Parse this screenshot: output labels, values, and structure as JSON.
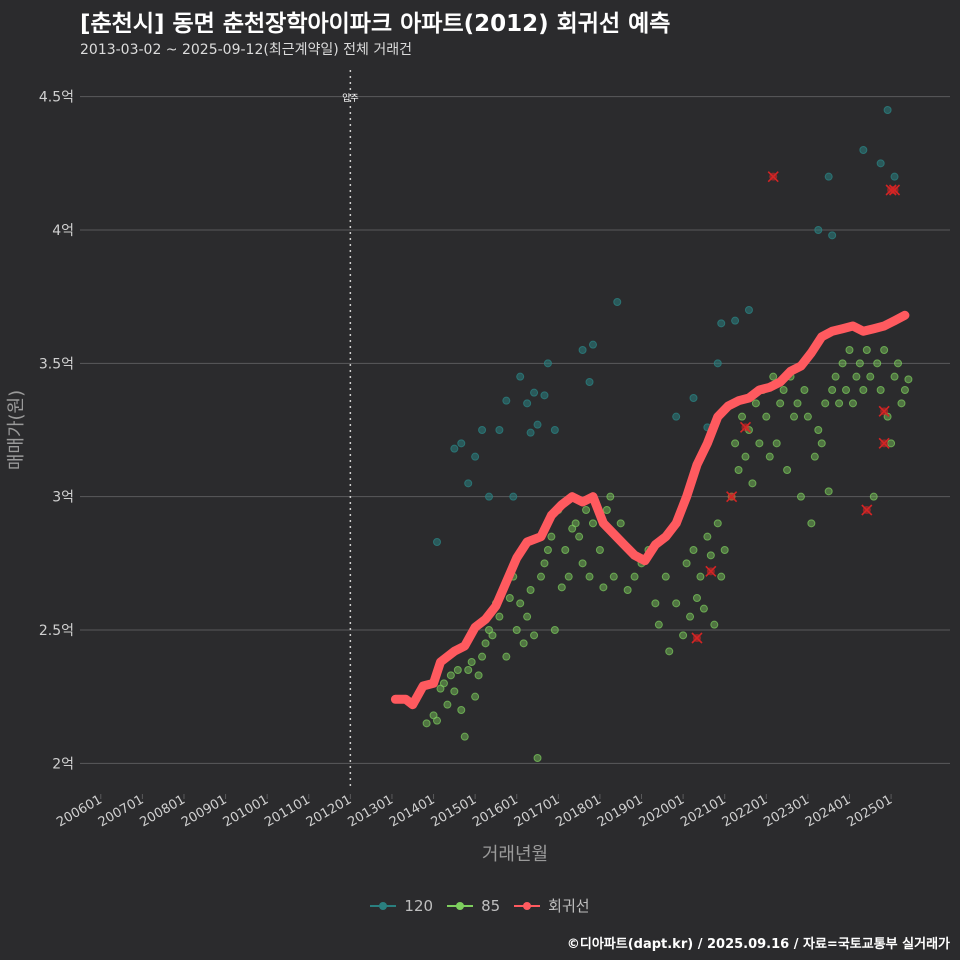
{
  "title": "[춘천시] 동면 춘천장학아이파크 아파트(2012) 회귀선 예측",
  "subtitle": "2013-03-02 ~ 2025-09-12(최근계약일) 전체 거래건",
  "caption": "©디아파트(dapt.kr) / 2025.09.16 / 자료=국토교통부 실거래가",
  "colors": {
    "background": "#2b2b2d",
    "grid": "#5a5a5c",
    "series_120": "#2a7f7f",
    "series_85": "#7ecf5e",
    "regression": "#ff5a5f",
    "outlier": "#d42424",
    "text": "#d0d0d0"
  },
  "chart_data": {
    "type": "scatter",
    "title": "[춘천시] 동면 춘천장학아이파크 아파트(2012) 회귀선 예측",
    "xlabel": "거래년월",
    "ylabel": "매매가(원)",
    "x_ticks": [
      "200601",
      "200701",
      "200801",
      "200901",
      "201001",
      "201101",
      "201201",
      "201301",
      "201401",
      "201501",
      "201601",
      "201701",
      "201801",
      "201901",
      "202001",
      "202101",
      "202201",
      "202301",
      "202401",
      "202501"
    ],
    "y_ticks": [
      {
        "value": 2.0,
        "label": "2억"
      },
      {
        "value": 2.5,
        "label": "2.5억"
      },
      {
        "value": 3.0,
        "label": "3억"
      },
      {
        "value": 3.5,
        "label": "3.5억"
      },
      {
        "value": 4.0,
        "label": "4억"
      },
      {
        "value": 4.5,
        "label": "4.5억"
      }
    ],
    "x_range": [
      "2005-07",
      "2026-06"
    ],
    "ylim": [
      1.9,
      4.6
    ],
    "unit": "억",
    "grid": "horizontal",
    "legend_position": "bottom",
    "annotation": {
      "date": "2012-01",
      "label": "입주"
    },
    "series": [
      {
        "name": "120",
        "type": "scatter",
        "points": [
          [
            "2014-02",
            2.83
          ],
          [
            "2014-07",
            3.18
          ],
          [
            "2014-09",
            3.2
          ],
          [
            "2014-11",
            3.05
          ],
          [
            "2015-01",
            3.15
          ],
          [
            "2015-03",
            3.25
          ],
          [
            "2015-05",
            3.0
          ],
          [
            "2015-08",
            3.25
          ],
          [
            "2015-10",
            3.36
          ],
          [
            "2015-12",
            3.0
          ],
          [
            "2016-02",
            3.45
          ],
          [
            "2016-04",
            3.35
          ],
          [
            "2016-05",
            3.24
          ],
          [
            "2016-06",
            3.39
          ],
          [
            "2016-07",
            3.27
          ],
          [
            "2016-09",
            3.38
          ],
          [
            "2016-10",
            3.5
          ],
          [
            "2016-12",
            3.25
          ],
          [
            "2017-08",
            3.55
          ],
          [
            "2017-10",
            3.43
          ],
          [
            "2017-11",
            3.57
          ],
          [
            "2018-06",
            3.73
          ],
          [
            "2019-11",
            3.3
          ],
          [
            "2020-04",
            3.37
          ],
          [
            "2020-08",
            3.26
          ],
          [
            "2020-11",
            3.5
          ],
          [
            "2020-12",
            3.65
          ],
          [
            "2021-04",
            3.66
          ],
          [
            "2021-08",
            3.7
          ],
          [
            "2023-04",
            4.0
          ],
          [
            "2023-07",
            4.2
          ],
          [
            "2023-08",
            3.98
          ],
          [
            "2024-05",
            4.3
          ],
          [
            "2024-10",
            4.25
          ],
          [
            "2024-12",
            4.45
          ],
          [
            "2025-02",
            4.2
          ]
        ]
      },
      {
        "name": "85",
        "type": "scatter",
        "points": [
          [
            "2013-08",
            2.24
          ],
          [
            "2013-11",
            2.15
          ],
          [
            "2014-01",
            2.18
          ],
          [
            "2014-02",
            2.16
          ],
          [
            "2014-03",
            2.28
          ],
          [
            "2014-04",
            2.3
          ],
          [
            "2014-05",
            2.22
          ],
          [
            "2014-06",
            2.33
          ],
          [
            "2014-07",
            2.27
          ],
          [
            "2014-08",
            2.35
          ],
          [
            "2014-09",
            2.2
          ],
          [
            "2014-10",
            2.1
          ],
          [
            "2014-11",
            2.35
          ],
          [
            "2014-12",
            2.38
          ],
          [
            "2015-01",
            2.25
          ],
          [
            "2015-02",
            2.33
          ],
          [
            "2015-03",
            2.4
          ],
          [
            "2015-04",
            2.45
          ],
          [
            "2015-05",
            2.5
          ],
          [
            "2015-06",
            2.48
          ],
          [
            "2015-07",
            2.6
          ],
          [
            "2015-08",
            2.55
          ],
          [
            "2015-09",
            2.65
          ],
          [
            "2015-10",
            2.4
          ],
          [
            "2015-11",
            2.62
          ],
          [
            "2015-12",
            2.7
          ],
          [
            "2016-01",
            2.5
          ],
          [
            "2016-02",
            2.6
          ],
          [
            "2016-03",
            2.45
          ],
          [
            "2016-04",
            2.55
          ],
          [
            "2016-05",
            2.65
          ],
          [
            "2016-06",
            2.48
          ],
          [
            "2016-07",
            2.02
          ],
          [
            "2016-08",
            2.7
          ],
          [
            "2016-09",
            2.75
          ],
          [
            "2016-10",
            2.8
          ],
          [
            "2016-11",
            2.85
          ],
          [
            "2016-12",
            2.5
          ],
          [
            "2017-01",
            2.95
          ],
          [
            "2017-02",
            2.66
          ],
          [
            "2017-03",
            2.8
          ],
          [
            "2017-04",
            2.7
          ],
          [
            "2017-05",
            2.88
          ],
          [
            "2017-06",
            2.9
          ],
          [
            "2017-07",
            2.85
          ],
          [
            "2017-08",
            2.75
          ],
          [
            "2017-09",
            2.95
          ],
          [
            "2017-10",
            2.7
          ],
          [
            "2017-11",
            2.9
          ],
          [
            "2018-01",
            2.8
          ],
          [
            "2018-02",
            2.66
          ],
          [
            "2018-03",
            2.95
          ],
          [
            "2018-04",
            3.0
          ],
          [
            "2018-05",
            2.7
          ],
          [
            "2018-07",
            2.9
          ],
          [
            "2018-09",
            2.65
          ],
          [
            "2018-11",
            2.7
          ],
          [
            "2019-01",
            2.75
          ],
          [
            "2019-03",
            2.8
          ],
          [
            "2019-05",
            2.6
          ],
          [
            "2019-06",
            2.52
          ],
          [
            "2019-08",
            2.7
          ],
          [
            "2019-09",
            2.42
          ],
          [
            "2019-11",
            2.6
          ],
          [
            "2020-01",
            2.48
          ],
          [
            "2020-02",
            2.75
          ],
          [
            "2020-03",
            2.55
          ],
          [
            "2020-04",
            2.8
          ],
          [
            "2020-05",
            2.62
          ],
          [
            "2020-06",
            2.7
          ],
          [
            "2020-07",
            2.58
          ],
          [
            "2020-08",
            2.85
          ],
          [
            "2020-09",
            2.78
          ],
          [
            "2020-10",
            2.52
          ],
          [
            "2020-11",
            2.9
          ],
          [
            "2020-12",
            2.7
          ],
          [
            "2021-01",
            2.8
          ],
          [
            "2021-03",
            3.0
          ],
          [
            "2021-04",
            3.2
          ],
          [
            "2021-05",
            3.1
          ],
          [
            "2021-06",
            3.3
          ],
          [
            "2021-07",
            3.15
          ],
          [
            "2021-08",
            3.25
          ],
          [
            "2021-09",
            3.05
          ],
          [
            "2021-10",
            3.35
          ],
          [
            "2021-11",
            3.2
          ],
          [
            "2021-12",
            3.4
          ],
          [
            "2022-01",
            3.3
          ],
          [
            "2022-02",
            3.15
          ],
          [
            "2022-03",
            3.45
          ],
          [
            "2022-04",
            3.2
          ],
          [
            "2022-05",
            3.35
          ],
          [
            "2022-06",
            3.4
          ],
          [
            "2022-07",
            3.1
          ],
          [
            "2022-08",
            3.45
          ],
          [
            "2022-09",
            3.3
          ],
          [
            "2022-10",
            3.35
          ],
          [
            "2022-11",
            3.0
          ],
          [
            "2022-12",
            3.4
          ],
          [
            "2023-01",
            3.3
          ],
          [
            "2023-02",
            2.9
          ],
          [
            "2023-03",
            3.15
          ],
          [
            "2023-04",
            3.25
          ],
          [
            "2023-05",
            3.2
          ],
          [
            "2023-06",
            3.35
          ],
          [
            "2023-07",
            3.02
          ],
          [
            "2023-08",
            3.4
          ],
          [
            "2023-09",
            3.45
          ],
          [
            "2023-10",
            3.35
          ],
          [
            "2023-11",
            3.5
          ],
          [
            "2023-12",
            3.4
          ],
          [
            "2024-01",
            3.55
          ],
          [
            "2024-02",
            3.35
          ],
          [
            "2024-03",
            3.45
          ],
          [
            "2024-04",
            3.5
          ],
          [
            "2024-05",
            3.4
          ],
          [
            "2024-06",
            3.55
          ],
          [
            "2024-07",
            3.45
          ],
          [
            "2024-08",
            3.0
          ],
          [
            "2024-09",
            3.5
          ],
          [
            "2024-10",
            3.4
          ],
          [
            "2024-11",
            3.55
          ],
          [
            "2024-12",
            3.3
          ],
          [
            "2025-01",
            3.2
          ],
          [
            "2025-02",
            3.45
          ],
          [
            "2025-03",
            3.5
          ],
          [
            "2025-04",
            3.35
          ],
          [
            "2025-05",
            3.4
          ],
          [
            "2025-06",
            3.44
          ]
        ]
      },
      {
        "name": "회귀선",
        "type": "line",
        "points": [
          [
            "2013-02",
            2.24
          ],
          [
            "2013-05",
            2.24
          ],
          [
            "2013-07",
            2.22
          ],
          [
            "2013-10",
            2.29
          ],
          [
            "2014-01",
            2.3
          ],
          [
            "2014-03",
            2.38
          ],
          [
            "2014-07",
            2.42
          ],
          [
            "2014-10",
            2.44
          ],
          [
            "2015-01",
            2.51
          ],
          [
            "2015-04",
            2.54
          ],
          [
            "2015-07",
            2.59
          ],
          [
            "2015-10",
            2.68
          ],
          [
            "2016-01",
            2.77
          ],
          [
            "2016-04",
            2.83
          ],
          [
            "2016-08",
            2.85
          ],
          [
            "2016-11",
            2.93
          ],
          [
            "2017-02",
            2.97
          ],
          [
            "2017-05",
            3.0
          ],
          [
            "2017-08",
            2.98
          ],
          [
            "2017-11",
            3.0
          ],
          [
            "2018-02",
            2.9
          ],
          [
            "2018-05",
            2.86
          ],
          [
            "2018-08",
            2.82
          ],
          [
            "2018-11",
            2.78
          ],
          [
            "2019-02",
            2.76
          ],
          [
            "2019-05",
            2.82
          ],
          [
            "2019-08",
            2.85
          ],
          [
            "2019-11",
            2.9
          ],
          [
            "2020-02",
            3.0
          ],
          [
            "2020-05",
            3.12
          ],
          [
            "2020-08",
            3.2
          ],
          [
            "2020-11",
            3.3
          ],
          [
            "2021-02",
            3.34
          ],
          [
            "2021-05",
            3.36
          ],
          [
            "2021-08",
            3.37
          ],
          [
            "2021-11",
            3.4
          ],
          [
            "2022-02",
            3.41
          ],
          [
            "2022-05",
            3.43
          ],
          [
            "2022-08",
            3.47
          ],
          [
            "2022-11",
            3.49
          ],
          [
            "2023-02",
            3.54
          ],
          [
            "2023-05",
            3.6
          ],
          [
            "2023-08",
            3.62
          ],
          [
            "2023-11",
            3.63
          ],
          [
            "2024-02",
            3.64
          ],
          [
            "2024-05",
            3.62
          ],
          [
            "2024-08",
            3.63
          ],
          [
            "2024-11",
            3.64
          ],
          [
            "2025-02",
            3.66
          ],
          [
            "2025-05",
            3.68
          ]
        ]
      }
    ],
    "outliers": [
      [
        "2020-05",
        2.47
      ],
      [
        "2020-09",
        2.72
      ],
      [
        "2021-03",
        3.0
      ],
      [
        "2021-07",
        3.26
      ],
      [
        "2022-03",
        4.2
      ],
      [
        "2024-06",
        2.95
      ],
      [
        "2024-11",
        3.2
      ],
      [
        "2024-11",
        3.32
      ],
      [
        "2025-01",
        4.15
      ],
      [
        "2025-02",
        4.15
      ]
    ]
  },
  "legend": [
    {
      "key": "legend-120",
      "label": "120",
      "color": "#2a7f7f"
    },
    {
      "key": "legend-85",
      "label": "85",
      "color": "#7ecf5e"
    },
    {
      "key": "legend-regression",
      "label": "회귀선",
      "color": "#ff5a5f"
    }
  ]
}
